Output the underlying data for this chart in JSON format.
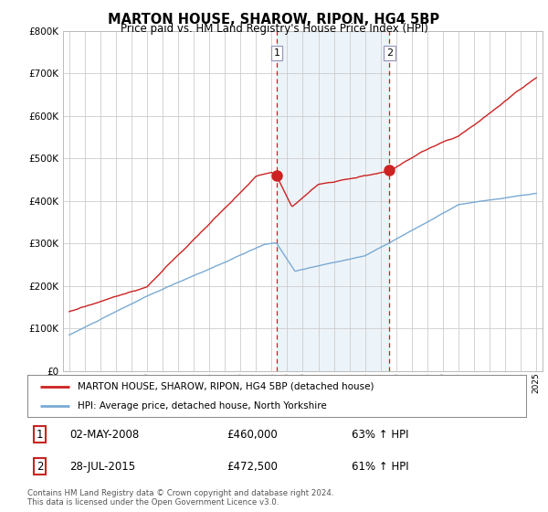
{
  "title": "MARTON HOUSE, SHAROW, RIPON, HG4 5BP",
  "subtitle": "Price paid vs. HM Land Registry's House Price Index (HPI)",
  "hpi_color": "#7aaad4",
  "price_color": "#cc2222",
  "sale1_date": 2008.33,
  "sale1_price": 460000,
  "sale1_label": "1",
  "sale2_date": 2015.57,
  "sale2_price": 472500,
  "sale2_label": "2",
  "ylim_min": 0,
  "ylim_max": 800000,
  "xlim_min": 1994.6,
  "xlim_max": 2025.4,
  "legend_line1": "MARTON HOUSE, SHAROW, RIPON, HG4 5BP (detached house)",
  "legend_line2": "HPI: Average price, detached house, North Yorkshire",
  "table_row1": [
    "1",
    "02-MAY-2008",
    "£460,000",
    "63% ↑ HPI"
  ],
  "table_row2": [
    "2",
    "28-JUL-2015",
    "£472,500",
    "61% ↑ HPI"
  ],
  "footnote": "Contains HM Land Registry data © Crown copyright and database right 2024.\nThis data is licensed under the Open Government Licence v3.0.",
  "background_color": "#ffffff",
  "grid_color": "#cccccc"
}
